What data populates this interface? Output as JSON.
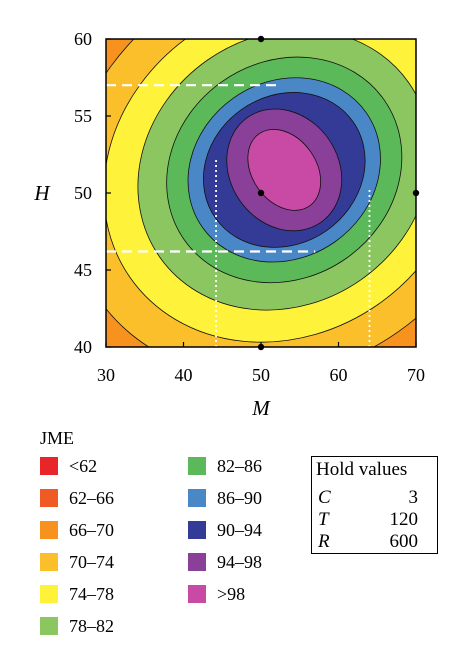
{
  "chart_data": {
    "type": "contour",
    "title": "",
    "xlabel": "M",
    "ylabel": "H",
    "xlim": [
      30,
      70
    ],
    "ylim": [
      40,
      60
    ],
    "x_ticks": [
      "30",
      "40",
      "50",
      "60",
      "70"
    ],
    "y_ticks": [
      "40",
      "45",
      "50",
      "55",
      "60"
    ],
    "grid": false,
    "optimum_region_center": {
      "M": 53,
      "H": 51.5
    },
    "design_points": [
      {
        "M": 50,
        "H": 50
      },
      {
        "M": 50,
        "H": 60
      },
      {
        "M": 50,
        "H": 40
      },
      {
        "M": 70,
        "H": 50
      }
    ],
    "reference_lines": [
      {
        "style": "dashed",
        "orientation": "horizontal",
        "H": 57,
        "M_from": 30,
        "M_to": 52
      },
      {
        "style": "dashed",
        "orientation": "horizontal",
        "H": 46.2,
        "M_from": 30,
        "M_to": 57
      },
      {
        "style": "dotted",
        "orientation": "vertical",
        "M": 44.2,
        "H_from": 40,
        "H_to": 52.2
      },
      {
        "style": "dotted",
        "orientation": "vertical",
        "M": 64,
        "H_from": 40,
        "H_to": 50.2
      }
    ],
    "legend": {
      "title": "JME",
      "entries": [
        {
          "label": "<62",
          "color": "#e8262a"
        },
        {
          "label": "62–66",
          "color": "#f05a24"
        },
        {
          "label": "66–70",
          "color": "#f7921e"
        },
        {
          "label": "70–74",
          "color": "#fbbf2b"
        },
        {
          "label": "74–78",
          "color": "#fff23a"
        },
        {
          "label": "78–82",
          "color": "#8cc660"
        },
        {
          "label": "82–86",
          "color": "#5bb95a"
        },
        {
          "label": "86–90",
          "color": "#4a87c6"
        },
        {
          "label": "90–94",
          "color": "#333b97"
        },
        {
          "label": "94–98",
          "color": "#8a3f99"
        },
        {
          "label": ">98",
          "color": "#c94aa5"
        }
      ]
    },
    "hold_values": {
      "title": "Hold values",
      "rows": [
        {
          "name": "C",
          "value": "3"
        },
        {
          "name": "T",
          "value": "120"
        },
        {
          "name": "R",
          "value": "600"
        }
      ]
    }
  }
}
